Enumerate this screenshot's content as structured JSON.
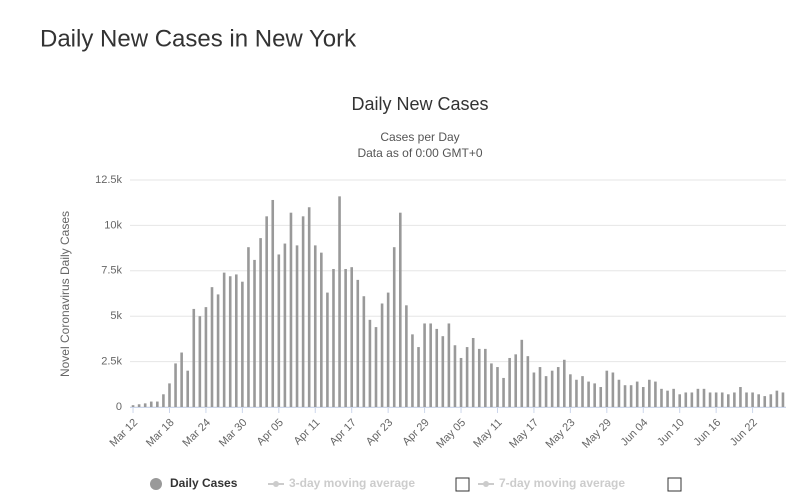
{
  "header": {
    "title": "Daily New Cases in New York"
  },
  "chart_data": {
    "type": "bar",
    "title": "Daily New Cases",
    "subtitle": [
      "Cases per Day",
      "Data as of 0:00 GMT+0"
    ],
    "y_label": "Novel Coronavirus Daily Cases",
    "categories": [
      "Mar 12",
      null,
      null,
      null,
      null,
      null,
      "Mar 18",
      null,
      null,
      null,
      null,
      null,
      "Mar 24",
      null,
      null,
      null,
      null,
      null,
      "Mar 30",
      null,
      null,
      null,
      null,
      null,
      "Apr 05",
      null,
      null,
      null,
      null,
      null,
      "Apr 11",
      null,
      null,
      null,
      null,
      null,
      "Apr 17",
      null,
      null,
      null,
      null,
      null,
      "Apr 23",
      null,
      null,
      null,
      null,
      null,
      "Apr 29",
      null,
      null,
      null,
      null,
      null,
      "May 05",
      null,
      null,
      null,
      null,
      null,
      "May 11",
      null,
      null,
      null,
      null,
      null,
      "May 17",
      null,
      null,
      null,
      null,
      null,
      "May 23",
      null,
      null,
      null,
      null,
      null,
      "May 29",
      null,
      null,
      null,
      null,
      null,
      "Jun 04",
      null,
      null,
      null,
      null,
      null,
      "Jun 10",
      null,
      null,
      null,
      null,
      null,
      "Jun 16",
      null,
      null,
      null,
      null,
      null,
      "Jun 22",
      null,
      null,
      null,
      null,
      null
    ],
    "series": [
      {
        "name": "Daily Cases",
        "color": "#999999",
        "values": [
          100,
          150,
          200,
          300,
          300,
          700,
          1300,
          2400,
          3000,
          2000,
          5400,
          5000,
          5500,
          6600,
          6200,
          7400,
          7200,
          7300,
          6900,
          8800,
          8100,
          9300,
          10500,
          11400,
          8400,
          9000,
          10700,
          8900,
          10500,
          11000,
          8900,
          8500,
          6300,
          7600,
          11600,
          7600,
          7700,
          7000,
          6100,
          4800,
          4400,
          5700,
          6300,
          8800,
          10700,
          5600,
          4000,
          3300,
          4600,
          4600,
          4300,
          3900,
          4600,
          3400,
          2700,
          3300,
          3800,
          3200,
          3200,
          2400,
          2200,
          1600,
          2700,
          2900,
          3700,
          2800,
          1900,
          2200,
          1700,
          2000,
          2200,
          2600,
          1800,
          1500,
          1700,
          1400,
          1300,
          1100,
          2000,
          1900,
          1500,
          1200,
          1200,
          1400,
          1100,
          1500,
          1400,
          1000,
          900,
          1000,
          700,
          800,
          800,
          1000,
          1000,
          800,
          800,
          800,
          700,
          800,
          1100,
          800,
          800,
          700,
          600,
          700,
          900,
          800
        ]
      }
    ],
    "hidden_series": [
      {
        "name": "3-day moving average"
      },
      {
        "name": "7-day moving average"
      }
    ],
    "ylim": [
      0,
      12500
    ],
    "yticks": [
      0,
      {
        "value": 2500,
        "label": "2.5k"
      },
      {
        "value": 5000,
        "label": "5k"
      },
      {
        "value": 7500,
        "label": "7.5k"
      },
      {
        "value": 10000,
        "label": "10k"
      },
      {
        "value": 12500,
        "label": "12.5k"
      }
    ],
    "grid": true
  }
}
